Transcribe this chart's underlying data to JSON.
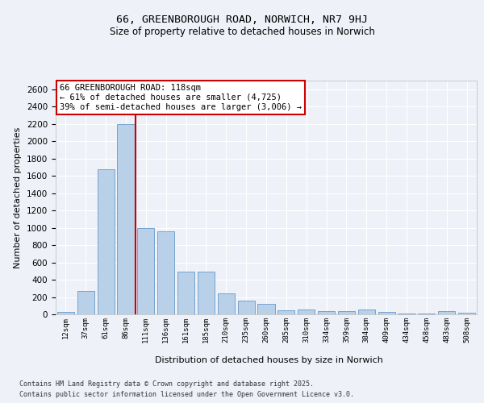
{
  "title_line1": "66, GREENBOROUGH ROAD, NORWICH, NR7 9HJ",
  "title_line2": "Size of property relative to detached houses in Norwich",
  "xlabel": "Distribution of detached houses by size in Norwich",
  "ylabel": "Number of detached properties",
  "categories": [
    "12sqm",
    "37sqm",
    "61sqm",
    "86sqm",
    "111sqm",
    "136sqm",
    "161sqm",
    "185sqm",
    "210sqm",
    "235sqm",
    "260sqm",
    "285sqm",
    "310sqm",
    "334sqm",
    "359sqm",
    "384sqm",
    "409sqm",
    "434sqm",
    "458sqm",
    "483sqm",
    "508sqm"
  ],
  "values": [
    25,
    270,
    1680,
    2200,
    1000,
    960,
    490,
    490,
    240,
    155,
    120,
    50,
    60,
    40,
    40,
    60,
    25,
    10,
    10,
    35,
    15
  ],
  "bar_color": "#b8d0e8",
  "bar_edge_color": "#6699cc",
  "vline_x_idx": 3,
  "vline_x_offset": 0.5,
  "vline_color": "#cc0000",
  "annotation_text": "66 GREENBOROUGH ROAD: 118sqm\n← 61% of detached houses are smaller (4,725)\n39% of semi-detached houses are larger (3,006) →",
  "annotation_box_facecolor": "#ffffff",
  "annotation_box_edgecolor": "#cc0000",
  "ylim": [
    0,
    2700
  ],
  "yticks": [
    0,
    200,
    400,
    600,
    800,
    1000,
    1200,
    1400,
    1600,
    1800,
    2000,
    2200,
    2400,
    2600
  ],
  "footer_line1": "Contains HM Land Registry data © Crown copyright and database right 2025.",
  "footer_line2": "Contains public sector information licensed under the Open Government Licence v3.0.",
  "bg_color": "#eef2f8",
  "plot_bg_color": "#eef2f8",
  "title1_fontsize": 9.5,
  "title2_fontsize": 8.5,
  "ylabel_fontsize": 8,
  "xlabel_fontsize": 8,
  "ytick_fontsize": 7.5,
  "xtick_fontsize": 6.5,
  "footer_fontsize": 6,
  "annot_fontsize": 7.5
}
